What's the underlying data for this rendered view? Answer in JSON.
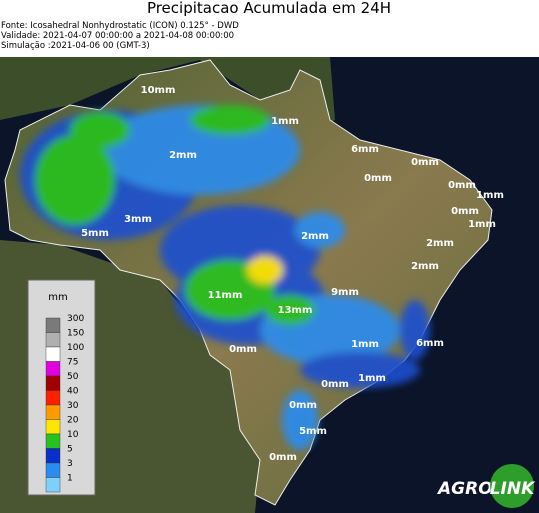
{
  "header": {
    "title": "Precipitacao Acumulada em 24H",
    "lines": [
      "Fonte: Icosahedral Nonhydrostatic (ICON) 0.125° - DWD",
      "Validade: 2021-04-07 00:00:00 a 2021-04-08 00:00:00",
      "Simulação :2021-04-06 00 (GMT-3)"
    ]
  },
  "legend": {
    "unit": "mm",
    "levels": [
      {
        "label": "300",
        "color": "#7a7a7a"
      },
      {
        "label": "150",
        "color": "#b0b0b0"
      },
      {
        "label": "100",
        "color": "#ffffff"
      },
      {
        "label": "75",
        "color": "#e000e0"
      },
      {
        "label": "50",
        "color": "#a00000"
      },
      {
        "label": "40",
        "color": "#ff2000"
      },
      {
        "label": "30",
        "color": "#ff9a00"
      },
      {
        "label": "20",
        "color": "#ffe600"
      },
      {
        "label": "10",
        "color": "#27c21f"
      },
      {
        "label": "5",
        "color": "#0a2fc8"
      },
      {
        "label": "3",
        "color": "#2a8cf0"
      },
      {
        "label": "1",
        "color": "#7fd0ff"
      }
    ]
  },
  "map": {
    "labels": [
      "10mm",
      "1mm",
      "6mm",
      "0mm",
      "2mm",
      "0mm",
      "0mm",
      "1mm",
      "0mm",
      "3mm",
      "1mm",
      "5mm",
      "2mm",
      "2mm",
      "2mm",
      "9mm",
      "11mm",
      "13mm",
      "0mm",
      "1mm",
      "6mm",
      "1mm",
      "0mm",
      "0mm",
      "5mm",
      "0mm"
    ]
  },
  "logo": {
    "left": "AGRO",
    "right": "LINK"
  }
}
